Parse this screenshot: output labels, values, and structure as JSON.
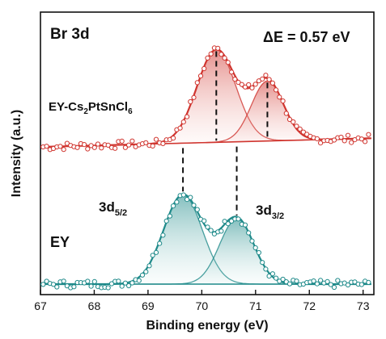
{
  "chart_data": {
    "type": "line",
    "xlabel": "Binding energy (eV)",
    "ylabel": "Intensity (a.u.)",
    "xlim": [
      67,
      73.2
    ],
    "x_ticks": [
      67,
      68,
      69,
      70,
      71,
      72,
      73
    ],
    "y_ticks_shown": false,
    "grid": false,
    "annotations": {
      "panel_label": "Br 3d",
      "delta_label": "ΔE = 0.57 eV",
      "peak_5_2": {
        "base": "3d",
        "sub": "5/2"
      },
      "peak_3_2": {
        "base": "3d",
        "sub": "3/2"
      }
    },
    "series": [
      {
        "name": "EY-Cs2PtSnCl6",
        "label_parts": [
          {
            "t": "EY-Cs",
            "sub": false
          },
          {
            "t": "2",
            "sub": true
          },
          {
            "t": "PtSnCl",
            "sub": false
          },
          {
            "t": "6",
            "sub": true
          }
        ],
        "color": "#d0352f",
        "fill": "#f2b9b3",
        "offset": 1.0,
        "peak_positions": [
          70.27,
          71.22
        ],
        "peak_heights": [
          0.85,
          0.55
        ],
        "fwhm": [
          0.85,
          0.7
        ],
        "background": [
          0.0,
          0.08
        ]
      },
      {
        "name": "EY",
        "color": "#1f8a8a",
        "fill": "#a9d6d3",
        "offset": 0.0,
        "peak_positions": [
          69.65,
          70.65
        ],
        "peak_heights": [
          0.82,
          0.6
        ],
        "fwhm": [
          0.85,
          0.75
        ],
        "background": [
          0.0,
          0.0
        ]
      }
    ]
  }
}
